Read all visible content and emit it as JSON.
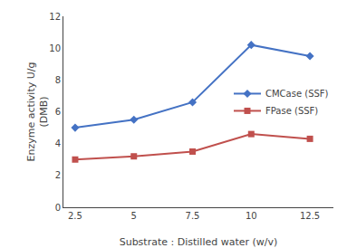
{
  "chart_data": {
    "type": "line",
    "xlabel": "Substrate : Distilled water (w/v)",
    "ylabel": "Enzyme activity U/g\n(DMB)",
    "x": [
      2.5,
      5,
      7.5,
      10,
      12.5
    ],
    "series": [
      {
        "name": "CMCase (SSF)",
        "color": "#4472C4",
        "marker": "diamond",
        "line_style": "solid",
        "values": [
          5.0,
          5.5,
          6.6,
          10.2,
          9.5
        ]
      },
      {
        "name": "FPase (SSF)",
        "color": "#C0504D",
        "marker": "square",
        "line_style": "solid",
        "values": [
          3.0,
          3.2,
          3.5,
          4.6,
          4.3
        ]
      }
    ],
    "xlim": [
      2.0,
      13.5
    ],
    "ylim": [
      0,
      12
    ],
    "xticks": [
      2.5,
      5,
      7.5,
      10,
      12.5
    ],
    "yticks": [
      0,
      2,
      4,
      6,
      8,
      10,
      12
    ],
    "grid": false,
    "legend": "right"
  }
}
